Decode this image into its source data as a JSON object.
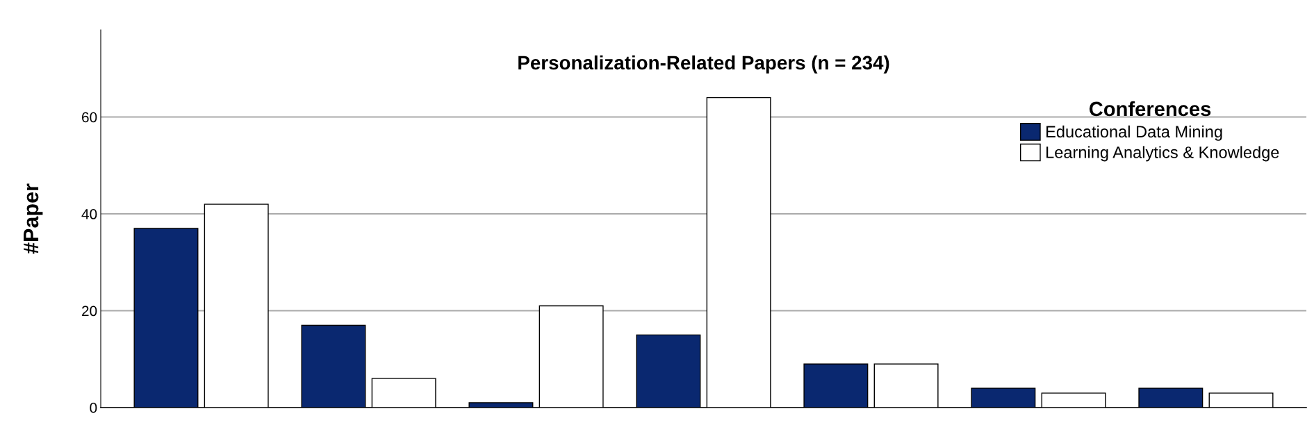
{
  "chart_data": {
    "type": "bar",
    "title": "Personalization-Related Papers (n = 234)",
    "ylabel": "#Paper",
    "legend_title": "Conferences",
    "categories": [
      null,
      null,
      null,
      null,
      null,
      null,
      null
    ],
    "series": [
      {
        "name": "Educational Data Mining",
        "color": "#0a2870",
        "values": [
          37,
          17,
          1,
          15,
          9,
          4,
          4
        ]
      },
      {
        "name": "Learning Analytics & Knowledge",
        "color": "#ffffff",
        "values": [
          42,
          6,
          21,
          64,
          9,
          3,
          3
        ]
      }
    ],
    "ylim": [
      0,
      78
    ],
    "yticks": [
      0,
      20,
      40,
      60
    ],
    "grid": "y",
    "legend": "top right"
  }
}
